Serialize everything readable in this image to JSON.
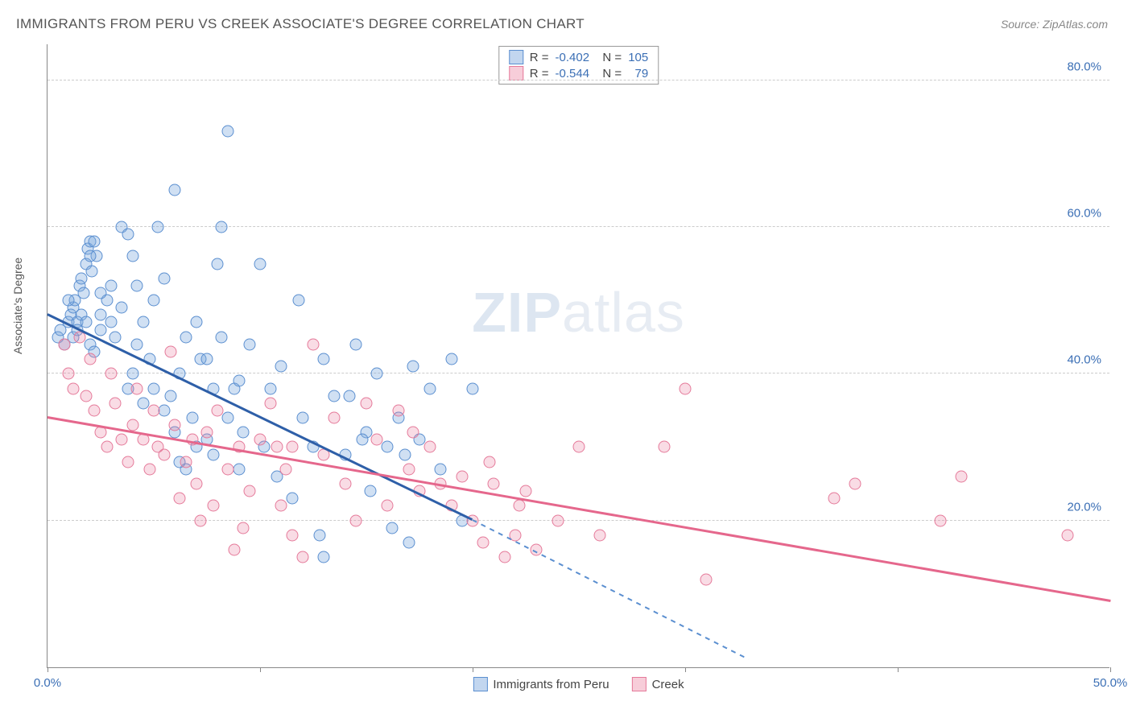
{
  "title": "IMMIGRANTS FROM PERU VS CREEK ASSOCIATE'S DEGREE CORRELATION CHART",
  "source": "Source: ZipAtlas.com",
  "watermark_zip": "ZIP",
  "watermark_atlas": "atlas",
  "ylabel": "Associate's Degree",
  "chart": {
    "type": "scatter",
    "background_color": "#ffffff",
    "grid_color": "#cccccc",
    "xlim": [
      0,
      50
    ],
    "ylim": [
      0,
      85
    ],
    "xticks": [
      0,
      10,
      20,
      30,
      40,
      50
    ],
    "xtick_labels": {
      "0": "0.0%",
      "50": "50.0%"
    },
    "ytick_values": [
      20,
      40,
      60,
      80
    ],
    "ytick_labels": [
      "20.0%",
      "40.0%",
      "60.0%",
      "80.0%"
    ],
    "marker_size": 15,
    "series": [
      {
        "name": "Immigrants from Peru",
        "color_fill": "rgba(120,165,220,0.35)",
        "color_stroke": "#5b8fd0",
        "trend_color": "#2e5fa8",
        "R": "-0.402",
        "N": "105",
        "trend": {
          "x1": 0,
          "y1": 48,
          "x2": 20,
          "y2": 20
        },
        "trend_dashed": {
          "x1": 20,
          "y1": 20,
          "x2": 33,
          "y2": 1
        },
        "points": [
          [
            0.5,
            45
          ],
          [
            0.6,
            46
          ],
          [
            0.8,
            44
          ],
          [
            1.0,
            47
          ],
          [
            1.1,
            48
          ],
          [
            1.2,
            49
          ],
          [
            1.3,
            50
          ],
          [
            1.4,
            47
          ],
          [
            1.5,
            52
          ],
          [
            1.6,
            53
          ],
          [
            1.7,
            51
          ],
          [
            1.8,
            55
          ],
          [
            1.9,
            57
          ],
          [
            2.0,
            58
          ],
          [
            2.1,
            54
          ],
          [
            2.3,
            56
          ],
          [
            2.5,
            48
          ],
          [
            2.8,
            50
          ],
          [
            3.0,
            52
          ],
          [
            3.2,
            45
          ],
          [
            3.5,
            60
          ],
          [
            3.8,
            59
          ],
          [
            4.0,
            56
          ],
          [
            4.2,
            44
          ],
          [
            4.5,
            47
          ],
          [
            4.8,
            42
          ],
          [
            5.0,
            50
          ],
          [
            5.2,
            60
          ],
          [
            5.5,
            53
          ],
          [
            5.8,
            37
          ],
          [
            6.0,
            65
          ],
          [
            6.2,
            40
          ],
          [
            6.5,
            45
          ],
          [
            6.8,
            34
          ],
          [
            7.0,
            47
          ],
          [
            7.2,
            42
          ],
          [
            7.5,
            31
          ],
          [
            7.8,
            29
          ],
          [
            8.0,
            55
          ],
          [
            8.2,
            60
          ],
          [
            8.5,
            73
          ],
          [
            8.8,
            38
          ],
          [
            9.0,
            27
          ],
          [
            9.2,
            32
          ],
          [
            9.5,
            44
          ],
          [
            10.0,
            55
          ],
          [
            10.2,
            30
          ],
          [
            10.5,
            38
          ],
          [
            10.8,
            26
          ],
          [
            11.0,
            41
          ],
          [
            11.5,
            23
          ],
          [
            11.8,
            50
          ],
          [
            12.0,
            34
          ],
          [
            12.5,
            30
          ],
          [
            12.8,
            18
          ],
          [
            13.0,
            42
          ],
          [
            13.5,
            37
          ],
          [
            14.0,
            29
          ],
          [
            14.2,
            37
          ],
          [
            14.5,
            44
          ],
          [
            15.0,
            32
          ],
          [
            15.2,
            24
          ],
          [
            15.5,
            40
          ],
          [
            16.0,
            30
          ],
          [
            16.2,
            19
          ],
          [
            16.5,
            34
          ],
          [
            17.0,
            17
          ],
          [
            17.2,
            41
          ],
          [
            17.5,
            31
          ],
          [
            18.0,
            38
          ],
          [
            18.5,
            27
          ],
          [
            19.0,
            42
          ],
          [
            19.5,
            20
          ],
          [
            20.0,
            38
          ],
          [
            6.5,
            27
          ],
          [
            7.0,
            30
          ],
          [
            7.5,
            42
          ],
          [
            8.5,
            34
          ],
          [
            9.0,
            39
          ],
          [
            13.0,
            15
          ],
          [
            2.0,
            44
          ],
          [
            2.2,
            43
          ],
          [
            2.5,
            46
          ],
          [
            1.0,
            50
          ],
          [
            1.2,
            45
          ],
          [
            1.4,
            46
          ],
          [
            1.6,
            48
          ],
          [
            1.8,
            47
          ],
          [
            2.5,
            51
          ],
          [
            3.0,
            47
          ],
          [
            3.5,
            49
          ],
          [
            4.0,
            40
          ],
          [
            3.8,
            38
          ],
          [
            4.5,
            36
          ],
          [
            5.0,
            38
          ],
          [
            5.5,
            35
          ],
          [
            6.0,
            32
          ],
          [
            6.2,
            28
          ],
          [
            2.0,
            56
          ],
          [
            2.2,
            58
          ],
          [
            14.8,
            31
          ],
          [
            16.8,
            29
          ],
          [
            7.8,
            38
          ],
          [
            8.2,
            45
          ],
          [
            4.2,
            52
          ]
        ]
      },
      {
        "name": "Creek",
        "color_fill": "rgba(235,130,160,0.28)",
        "color_stroke": "#e57a9a",
        "trend_color": "#e5678c",
        "R": "-0.544",
        "N": "79",
        "trend": {
          "x1": 0,
          "y1": 34,
          "x2": 50,
          "y2": 9
        },
        "points": [
          [
            0.8,
            44
          ],
          [
            1.0,
            40
          ],
          [
            1.2,
            38
          ],
          [
            1.5,
            45
          ],
          [
            1.8,
            37
          ],
          [
            2.0,
            42
          ],
          [
            2.2,
            35
          ],
          [
            2.5,
            32
          ],
          [
            2.8,
            30
          ],
          [
            3.0,
            40
          ],
          [
            3.2,
            36
          ],
          [
            3.5,
            31
          ],
          [
            3.8,
            28
          ],
          [
            4.0,
            33
          ],
          [
            4.2,
            38
          ],
          [
            4.5,
            31
          ],
          [
            4.8,
            27
          ],
          [
            5.0,
            35
          ],
          [
            5.2,
            30
          ],
          [
            5.5,
            29
          ],
          [
            5.8,
            43
          ],
          [
            6.0,
            33
          ],
          [
            6.2,
            23
          ],
          [
            6.5,
            28
          ],
          [
            6.8,
            31
          ],
          [
            7.0,
            25
          ],
          [
            7.2,
            20
          ],
          [
            7.5,
            32
          ],
          [
            7.8,
            22
          ],
          [
            8.0,
            35
          ],
          [
            8.5,
            27
          ],
          [
            9.0,
            30
          ],
          [
            9.2,
            19
          ],
          [
            9.5,
            24
          ],
          [
            10.0,
            31
          ],
          [
            10.5,
            36
          ],
          [
            11.0,
            22
          ],
          [
            11.2,
            27
          ],
          [
            11.5,
            30
          ],
          [
            12.0,
            15
          ],
          [
            12.5,
            44
          ],
          [
            13.0,
            29
          ],
          [
            13.5,
            34
          ],
          [
            14.0,
            25
          ],
          [
            14.5,
            20
          ],
          [
            15.0,
            36
          ],
          [
            15.5,
            31
          ],
          [
            16.0,
            22
          ],
          [
            16.5,
            35
          ],
          [
            17.0,
            27
          ],
          [
            17.5,
            24
          ],
          [
            18.0,
            30
          ],
          [
            18.5,
            25
          ],
          [
            19.0,
            22
          ],
          [
            19.5,
            26
          ],
          [
            20.0,
            20
          ],
          [
            20.5,
            17
          ],
          [
            21.0,
            25
          ],
          [
            21.5,
            15
          ],
          [
            22.0,
            18
          ],
          [
            22.5,
            24
          ],
          [
            23.0,
            16
          ],
          [
            24.0,
            20
          ],
          [
            25.0,
            30
          ],
          [
            26.0,
            18
          ],
          [
            29.0,
            30
          ],
          [
            30.0,
            38
          ],
          [
            31.0,
            12
          ],
          [
            37.0,
            23
          ],
          [
            38.0,
            25
          ],
          [
            42.0,
            20
          ],
          [
            43.0,
            26
          ],
          [
            48.0,
            18
          ],
          [
            10.8,
            30
          ],
          [
            11.5,
            18
          ],
          [
            17.2,
            32
          ],
          [
            8.8,
            16
          ],
          [
            20.8,
            28
          ],
          [
            22.2,
            22
          ]
        ]
      }
    ]
  }
}
